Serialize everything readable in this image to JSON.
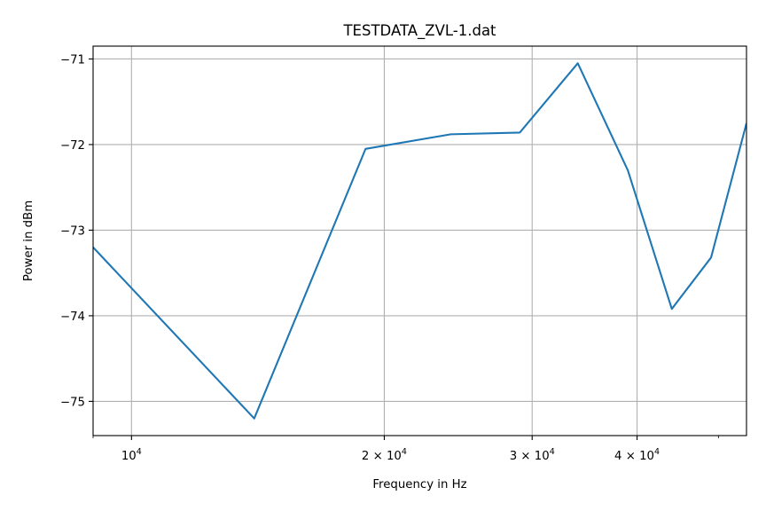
{
  "chart_data": {
    "type": "line",
    "title": "TESTDATA_ZVL-1.dat",
    "xlabel": "Frequency in Hz",
    "ylabel": "Power in dBm",
    "xscale": "log",
    "xlim": [
      9000,
      54000
    ],
    "ylim": [
      -75.4,
      -70.85
    ],
    "grid": true,
    "x_ticks": [
      {
        "value": 10000,
        "base": "10",
        "exp": "4"
      },
      {
        "value": 20000,
        "base": "2 × 10",
        "exp": "4"
      },
      {
        "value": 30000,
        "base": "3 × 10",
        "exp": "4"
      },
      {
        "value": 40000,
        "base": "4 × 10",
        "exp": "4"
      }
    ],
    "y_ticks": [
      {
        "value": -71,
        "label": "−71"
      },
      {
        "value": -72,
        "label": "−72"
      },
      {
        "value": -73,
        "label": "−73"
      },
      {
        "value": -74,
        "label": "−74"
      },
      {
        "value": -75,
        "label": "−75"
      }
    ],
    "series": [
      {
        "color": "#1f77b4",
        "x": [
          9000,
          14000,
          19000,
          24000,
          29000,
          34000,
          39000,
          44000,
          49000,
          54000
        ],
        "y": [
          -73.2,
          -75.2,
          -72.05,
          -71.88,
          -71.86,
          -71.05,
          -72.3,
          -73.92,
          -73.32,
          -71.75
        ]
      }
    ]
  }
}
